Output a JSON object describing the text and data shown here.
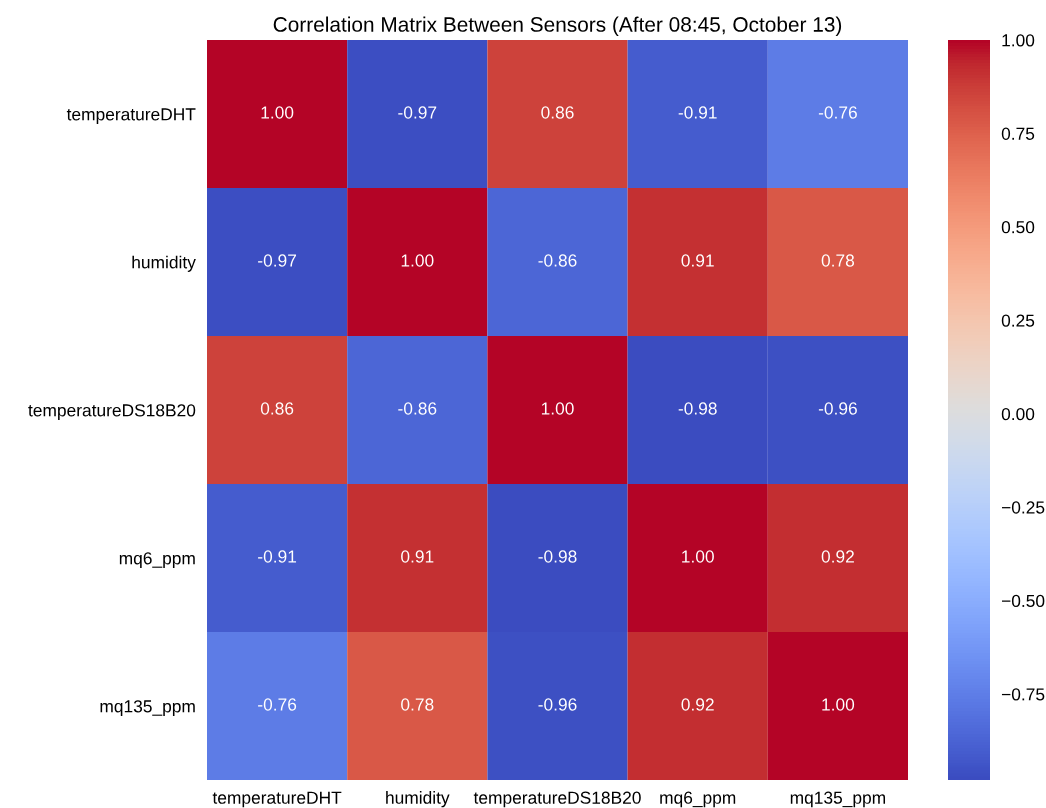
{
  "chart_data": {
    "type": "heatmap",
    "title": "Correlation Matrix Between Sensors (After 08:45, October 13)",
    "categories": [
      "temperatureDHT",
      "humidity",
      "temperatureDS18B20",
      "mq6_ppm",
      "mq135_ppm"
    ],
    "y_categories": [
      "temperatureDHT",
      "humidity",
      "temperatureDS18B20",
      "mq6_ppm",
      "mq135_ppm"
    ],
    "cells": [
      [
        1.0,
        -0.97,
        0.86,
        -0.91,
        -0.76
      ],
      [
        -0.97,
        1.0,
        -0.86,
        0.91,
        0.78
      ],
      [
        0.86,
        -0.86,
        1.0,
        -0.98,
        -0.96
      ],
      [
        -0.91,
        0.91,
        -0.98,
        1.0,
        0.92
      ],
      [
        -0.76,
        0.78,
        -0.96,
        0.92,
        1.0
      ]
    ],
    "cell_labels": [
      [
        "1.00",
        "-0.97",
        "0.86",
        "-0.91",
        "-0.76"
      ],
      [
        "-0.97",
        "1.00",
        "-0.86",
        "0.91",
        "0.78"
      ],
      [
        "0.86",
        "-0.86",
        "1.00",
        "-0.98",
        "-0.96"
      ],
      [
        "-0.91",
        "0.91",
        "-0.98",
        "1.00",
        "0.92"
      ],
      [
        "-0.76",
        "0.78",
        "-0.96",
        "0.92",
        "1.00"
      ]
    ],
    "clim": [
      -0.98,
      1.0
    ],
    "cticks": [
      {
        "value": -0.75,
        "label": "−0.75"
      },
      {
        "value": -0.5,
        "label": "−0.50"
      },
      {
        "value": -0.25,
        "label": "−0.25"
      },
      {
        "value": 0,
        "label": "0.00"
      },
      {
        "value": 0.25,
        "label": "0.25"
      },
      {
        "value": 0.5,
        "label": "0.50"
      },
      {
        "value": 0.75,
        "label": "0.75"
      },
      {
        "value": 1.0,
        "label": "1.00"
      }
    ],
    "grid": false
  }
}
